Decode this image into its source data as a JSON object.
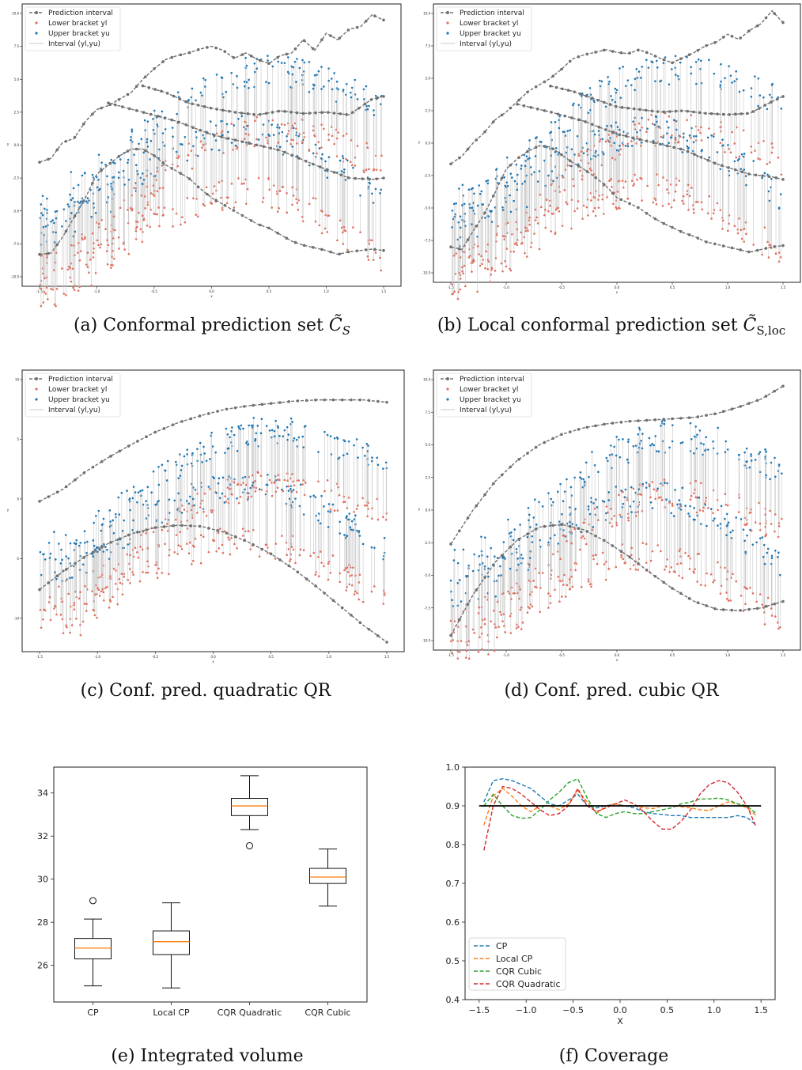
{
  "colors": {
    "lower": "#e07060",
    "upper": "#1f77b4",
    "band": "#707070",
    "interval_line": "#c8c8c8",
    "median": "#ff7f0e",
    "series": [
      "#1f77b4",
      "#ff7f0e",
      "#2ca02c",
      "#d62728"
    ]
  },
  "chart_data": [
    {
      "id": "a",
      "type": "scatter",
      "caption": "(a) Conformal prediction set ",
      "caption_math": "C̃",
      "caption_sub": "S",
      "xlabel": "x",
      "ylabel": "y",
      "xlim": [
        -1.5,
        1.5
      ],
      "ylim": [
        -10,
        10
      ],
      "xticks": [
        "-1.5",
        "-1.0",
        "-0.5",
        "0.0",
        "0.5",
        "1.0",
        "1.5"
      ],
      "yticks": [
        "-10.0",
        "-7.5",
        "-5.0",
        "-2.5",
        "0.0",
        "2.5",
        "5.0",
        "7.5",
        "10.0"
      ],
      "legend": [
        "Prediction interval",
        "Lower bracket yl",
        "Upper bracket yu",
        "Interval (yl,yu)"
      ],
      "legend_position": "top-left",
      "band_upper": {
        "x": [
          -1.5,
          -1.4,
          -1.3,
          -1.2,
          -1.1,
          -1.0,
          -0.9,
          -0.8,
          -0.7,
          -0.6,
          -0.5,
          -0.4,
          -0.3,
          -0.2,
          -0.1,
          0.0,
          0.1,
          0.2,
          0.3,
          0.4,
          0.5,
          0.6,
          0.7,
          0.8,
          0.9,
          1.0,
          1.1,
          1.2,
          1.3,
          1.4,
          1.5
        ],
        "y": [
          -1.3,
          -1.0,
          0.2,
          0.5,
          1.8,
          2.7,
          3.0,
          3.5,
          4.0,
          5.0,
          5.8,
          6.5,
          6.8,
          7.0,
          7.3,
          7.5,
          7.2,
          6.6,
          7.0,
          6.5,
          6.2,
          6.8,
          7.0,
          8.0,
          7.2,
          8.5,
          8.0,
          8.8,
          9.0,
          9.9,
          9.5
        ]
      },
      "band_lower": {
        "x": [
          -1.5,
          -1.4,
          -1.3,
          -1.2,
          -1.1,
          -1.0,
          -0.9,
          -0.8,
          -0.7,
          -0.6,
          -0.5,
          -0.4,
          -0.3,
          -0.2,
          -0.1,
          0.0,
          0.1,
          0.2,
          0.3,
          0.4,
          0.5,
          0.6,
          0.7,
          0.8,
          0.9,
          1.0,
          1.1,
          1.2,
          1.3,
          1.4,
          1.5
        ],
        "y": [
          -8.3,
          -8.2,
          -7.0,
          -5.5,
          -4.0,
          -2.2,
          -1.5,
          -0.8,
          -0.3,
          -0.3,
          -0.8,
          -1.5,
          -2.0,
          -2.5,
          -3.3,
          -4.0,
          -4.5,
          -5.0,
          -5.5,
          -6.0,
          -6.3,
          -6.8,
          -7.3,
          -7.6,
          -7.8,
          -8.0,
          -8.3,
          -8.1,
          -8.0,
          -7.9,
          -8.0
        ]
      },
      "band_mid_upper": {
        "x": [
          -0.6,
          -0.4,
          -0.2,
          0.0,
          0.2,
          0.4,
          0.6,
          0.8,
          1.0,
          1.2,
          1.4,
          1.5
        ],
        "y": [
          4.5,
          4.0,
          3.2,
          2.8,
          2.5,
          2.3,
          2.6,
          2.4,
          2.5,
          2.3,
          3.5,
          3.7
        ]
      },
      "band_mid_lower": {
        "x": [
          -0.9,
          -0.6,
          -0.3,
          0.0,
          0.3,
          0.6,
          0.9,
          1.2,
          1.4,
          1.5
        ],
        "y": [
          3.2,
          2.5,
          1.8,
          0.8,
          0.2,
          -0.4,
          -1.5,
          -2.5,
          -2.6,
          -2.5
        ]
      }
    },
    {
      "id": "b",
      "type": "scatter",
      "caption": "(b) Local conformal prediction set ",
      "caption_math": "C̃",
      "caption_sub": "S,loc",
      "xlabel": "x",
      "ylabel": "y",
      "xlim": [
        -1.5,
        1.5
      ],
      "ylim": [
        -10,
        10
      ],
      "xticks": [
        "-1.5",
        "-1.0",
        "-0.5",
        "0.0",
        "0.5",
        "1.0",
        "1.5"
      ],
      "yticks": [
        "-10.0",
        "-7.5",
        "-5.0",
        "-2.5",
        "0.0",
        "2.5",
        "5.0",
        "7.5",
        "10.0"
      ],
      "legend": [
        "Prediction interval",
        "Lower bracket yl",
        "Upper bracket yu",
        "Interval (yl,yu)"
      ],
      "legend_position": "top-left",
      "band_upper": {
        "x": [
          -1.5,
          -1.4,
          -1.3,
          -1.2,
          -1.1,
          -1.0,
          -0.9,
          -0.8,
          -0.7,
          -0.6,
          -0.5,
          -0.4,
          -0.3,
          -0.2,
          -0.1,
          0.0,
          0.1,
          0.2,
          0.3,
          0.4,
          0.5,
          0.6,
          0.7,
          0.8,
          0.9,
          1.0,
          1.1,
          1.2,
          1.3,
          1.4,
          1.5
        ],
        "y": [
          -1.6,
          -1.0,
          0.0,
          0.8,
          1.8,
          2.4,
          3.2,
          4.0,
          4.5,
          5.0,
          5.7,
          6.5,
          6.8,
          7.0,
          7.2,
          7.0,
          6.9,
          7.2,
          6.9,
          6.5,
          6.2,
          6.6,
          7.0,
          7.5,
          7.8,
          8.4,
          8.0,
          8.7,
          9.2,
          10.2,
          9.3
        ]
      },
      "band_lower": {
        "x": [
          -1.5,
          -1.4,
          -1.3,
          -1.2,
          -1.1,
          -1.0,
          -0.9,
          -0.8,
          -0.7,
          -0.6,
          -0.5,
          -0.4,
          -0.3,
          -0.2,
          -0.1,
          0.0,
          0.1,
          0.2,
          0.3,
          0.4,
          0.5,
          0.6,
          0.7,
          0.8,
          0.9,
          1.0,
          1.1,
          1.2,
          1.3,
          1.4,
          1.5
        ],
        "y": [
          -8.0,
          -8.2,
          -6.8,
          -5.5,
          -3.8,
          -2.0,
          -1.2,
          -0.6,
          -0.2,
          -0.3,
          -0.9,
          -1.5,
          -2.0,
          -2.6,
          -3.3,
          -4.2,
          -4.6,
          -5.0,
          -5.6,
          -6.1,
          -6.5,
          -6.9,
          -7.2,
          -7.6,
          -7.8,
          -8.0,
          -8.2,
          -8.4,
          -8.2,
          -8.0,
          -7.9
        ]
      },
      "band_mid_upper": {
        "x": [
          -0.6,
          -0.4,
          -0.2,
          0.0,
          0.2,
          0.4,
          0.6,
          0.8,
          1.0,
          1.2,
          1.4,
          1.5
        ],
        "y": [
          4.4,
          4.0,
          3.4,
          2.8,
          2.6,
          2.4,
          2.5,
          2.3,
          2.2,
          2.3,
          3.2,
          3.6
        ]
      },
      "band_mid_lower": {
        "x": [
          -0.9,
          -0.6,
          -0.3,
          0.0,
          0.3,
          0.6,
          0.9,
          1.2,
          1.4,
          1.5
        ],
        "y": [
          3.0,
          2.4,
          1.7,
          0.7,
          0.1,
          -0.5,
          -1.6,
          -2.4,
          -2.6,
          -2.8
        ]
      }
    },
    {
      "id": "c",
      "type": "scatter",
      "caption": "(c) Conf. pred. quadratic QR",
      "xlabel": "x",
      "ylabel": "y",
      "xlim": [
        -1.5,
        1.5
      ],
      "ylim": [
        -12,
        10
      ],
      "xticks": [
        "-1.5",
        "-1.0",
        "-0.5",
        "0.0",
        "0.5",
        "1.0",
        "1.5"
      ],
      "yticks": [
        "-10",
        "-5",
        "0",
        "5",
        "10"
      ],
      "legend": [
        "Prediction interval",
        "Lower bracket yl",
        "Upper bracket yu",
        "Interval (yl,yu)"
      ],
      "legend_position": "top-left",
      "band_upper": {
        "x": [
          -1.5,
          -1.3,
          -1.1,
          -0.9,
          -0.7,
          -0.5,
          -0.3,
          -0.1,
          0.1,
          0.3,
          0.5,
          0.7,
          0.9,
          1.1,
          1.3,
          1.5
        ],
        "y": [
          -0.2,
          0.8,
          2.3,
          3.5,
          4.6,
          5.6,
          6.4,
          7.0,
          7.5,
          7.8,
          8.0,
          8.2,
          8.3,
          8.3,
          8.3,
          8.1
        ]
      },
      "band_lower": {
        "x": [
          -1.5,
          -1.3,
          -1.1,
          -0.9,
          -0.7,
          -0.5,
          -0.3,
          -0.1,
          0.1,
          0.3,
          0.5,
          0.7,
          0.9,
          1.1,
          1.3,
          1.5
        ],
        "y": [
          -7.6,
          -6.1,
          -4.8,
          -3.7,
          -2.9,
          -2.4,
          -2.2,
          -2.3,
          -2.8,
          -3.6,
          -4.6,
          -5.9,
          -7.4,
          -9.0,
          -10.6,
          -12.0
        ]
      }
    },
    {
      "id": "d",
      "type": "scatter",
      "caption": "(d) Conf. pred. cubic QR",
      "xlabel": "x",
      "ylabel": "y",
      "xlim": [
        -1.5,
        1.5
      ],
      "ylim": [
        -10,
        10
      ],
      "xticks": [
        "-1.5",
        "-1.0",
        "-0.5",
        "0.0",
        "0.5",
        "1.0",
        "1.5"
      ],
      "yticks": [
        "-10.0",
        "-7.5",
        "-5.0",
        "-2.5",
        "0.0",
        "2.5",
        "5.0",
        "7.5",
        "10.0"
      ],
      "legend": [
        "Prediction interval",
        "Lower bracket yl",
        "Upper bracket yu",
        "Interval (yl,yu)"
      ],
      "legend_position": "top-left",
      "band_upper": {
        "x": [
          -1.5,
          -1.3,
          -1.1,
          -0.9,
          -0.7,
          -0.5,
          -0.3,
          -0.1,
          0.1,
          0.3,
          0.5,
          0.7,
          0.9,
          1.1,
          1.3,
          1.5
        ],
        "y": [
          -2.6,
          0.0,
          2.2,
          3.8,
          5.0,
          5.8,
          6.3,
          6.6,
          6.8,
          6.9,
          7.0,
          7.1,
          7.4,
          7.9,
          8.5,
          9.5
        ]
      },
      "band_lower": {
        "x": [
          -1.5,
          -1.3,
          -1.1,
          -0.9,
          -0.7,
          -0.5,
          -0.3,
          -0.1,
          0.1,
          0.3,
          0.5,
          0.7,
          0.9,
          1.1,
          1.3,
          1.5
        ],
        "y": [
          -9.6,
          -6.5,
          -4.0,
          -2.3,
          -1.3,
          -1.1,
          -1.5,
          -2.4,
          -3.5,
          -4.8,
          -6.0,
          -7.0,
          -7.6,
          -7.7,
          -7.5,
          -7.0
        ]
      }
    },
    {
      "id": "e",
      "type": "box",
      "caption": "(e) Integrated volume",
      "categories": [
        "CP",
        "Local CP",
        "CQR Quadratic",
        "CQR Cubic"
      ],
      "ylim": [
        24.3,
        35.2
      ],
      "yticks": [
        "26",
        "28",
        "30",
        "32",
        "34"
      ],
      "boxes": [
        {
          "whisker_low": 25.05,
          "q1": 26.3,
          "median": 26.8,
          "q3": 27.25,
          "whisker_high": 28.15,
          "outliers": [
            29.0
          ]
        },
        {
          "whisker_low": 24.95,
          "q1": 26.5,
          "median": 27.1,
          "q3": 27.6,
          "whisker_high": 28.9,
          "outliers": []
        },
        {
          "whisker_low": 32.3,
          "q1": 32.95,
          "median": 33.4,
          "q3": 33.75,
          "whisker_high": 34.8,
          "outliers": [
            31.55
          ]
        },
        {
          "whisker_low": 28.75,
          "q1": 29.8,
          "median": 30.1,
          "q3": 30.5,
          "whisker_high": 31.4,
          "outliers": []
        }
      ]
    },
    {
      "id": "f",
      "type": "line",
      "caption": "(f) Coverage",
      "xlabel": "X",
      "xlim": [
        -1.65,
        1.65
      ],
      "ylim": [
        0.4,
        1.0
      ],
      "xticks": [
        "-1.5",
        "-1.0",
        "-0.5",
        "0.0",
        "0.5",
        "1.0",
        "1.5"
      ],
      "yticks": [
        "0.4",
        "0.5",
        "0.6",
        "0.7",
        "0.8",
        "0.9",
        "1.0"
      ],
      "legend_position": "lower-left",
      "target": 0.9,
      "series": [
        {
          "name": "CP",
          "x": [
            -1.45,
            -1.35,
            -1.25,
            -1.15,
            -1.05,
            -0.95,
            -0.85,
            -0.75,
            -0.65,
            -0.55,
            -0.45,
            -0.35,
            -0.25,
            -0.15,
            -0.05,
            0.05,
            0.15,
            0.25,
            0.35,
            0.45,
            0.55,
            0.65,
            0.75,
            0.85,
            0.95,
            1.05,
            1.15,
            1.25,
            1.35,
            1.45
          ],
          "y": [
            0.91,
            0.965,
            0.97,
            0.965,
            0.955,
            0.945,
            0.925,
            0.905,
            0.9,
            0.915,
            0.93,
            0.9,
            0.895,
            0.9,
            0.905,
            0.9,
            0.895,
            0.885,
            0.88,
            0.878,
            0.875,
            0.875,
            0.87,
            0.87,
            0.87,
            0.87,
            0.87,
            0.875,
            0.87,
            0.85
          ]
        },
        {
          "name": "Local CP",
          "x": [
            -1.45,
            -1.35,
            -1.25,
            -1.15,
            -1.05,
            -0.95,
            -0.85,
            -0.75,
            -0.65,
            -0.55,
            -0.45,
            -0.35,
            -0.25,
            -0.15,
            -0.05,
            0.05,
            0.15,
            0.25,
            0.35,
            0.45,
            0.55,
            0.65,
            0.75,
            0.85,
            0.95,
            1.05,
            1.15,
            1.25,
            1.35,
            1.45
          ],
          "y": [
            0.85,
            0.925,
            0.945,
            0.925,
            0.9,
            0.885,
            0.9,
            0.9,
            0.89,
            0.905,
            0.94,
            0.91,
            0.88,
            0.9,
            0.905,
            0.9,
            0.9,
            0.895,
            0.893,
            0.9,
            0.9,
            0.898,
            0.895,
            0.89,
            0.888,
            0.9,
            0.91,
            0.905,
            0.895,
            0.875
          ]
        },
        {
          "name": "CQR Cubic",
          "x": [
            -1.45,
            -1.35,
            -1.25,
            -1.15,
            -1.05,
            -0.95,
            -0.85,
            -0.75,
            -0.65,
            -0.55,
            -0.45,
            -0.35,
            -0.25,
            -0.15,
            -0.05,
            0.05,
            0.15,
            0.25,
            0.35,
            0.45,
            0.55,
            0.65,
            0.75,
            0.85,
            0.95,
            1.05,
            1.15,
            1.25,
            1.35,
            1.45
          ],
          "y": [
            0.9,
            0.93,
            0.9,
            0.875,
            0.868,
            0.87,
            0.89,
            0.915,
            0.935,
            0.96,
            0.97,
            0.92,
            0.88,
            0.87,
            0.88,
            0.885,
            0.88,
            0.88,
            0.885,
            0.89,
            0.895,
            0.905,
            0.91,
            0.918,
            0.918,
            0.92,
            0.915,
            0.905,
            0.9,
            0.88
          ]
        },
        {
          "name": "CQR Quadratic",
          "x": [
            -1.45,
            -1.35,
            -1.25,
            -1.15,
            -1.05,
            -0.95,
            -0.85,
            -0.75,
            -0.65,
            -0.55,
            -0.45,
            -0.35,
            -0.25,
            -0.15,
            -0.05,
            0.05,
            0.15,
            0.25,
            0.35,
            0.45,
            0.55,
            0.65,
            0.75,
            0.85,
            0.95,
            1.05,
            1.15,
            1.25,
            1.35,
            1.45
          ],
          "y": [
            0.785,
            0.9,
            0.95,
            0.945,
            0.93,
            0.91,
            0.89,
            0.875,
            0.88,
            0.9,
            0.945,
            0.9,
            0.885,
            0.895,
            0.905,
            0.915,
            0.905,
            0.885,
            0.86,
            0.84,
            0.84,
            0.86,
            0.89,
            0.93,
            0.955,
            0.965,
            0.96,
            0.935,
            0.9,
            0.845
          ]
        }
      ]
    }
  ]
}
